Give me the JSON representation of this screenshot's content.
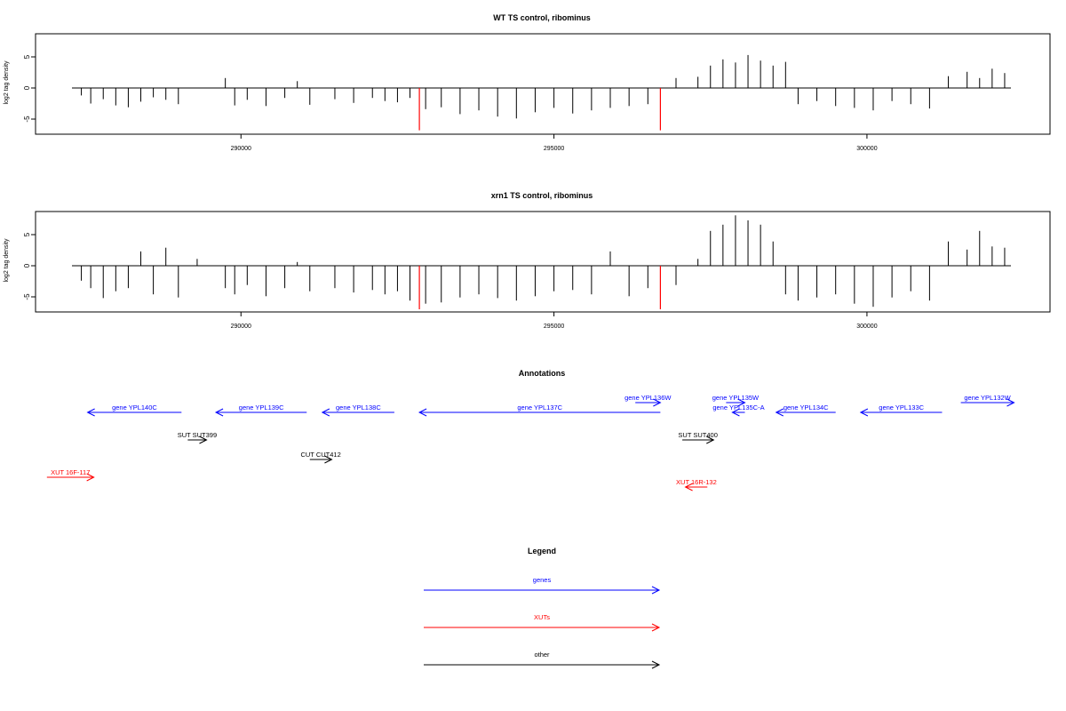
{
  "colors": {
    "gene": "#0000ff",
    "xut": "#ff0000",
    "other": "#000000",
    "bar": "#000000",
    "highlight": "#ff0000"
  },
  "panels": {
    "wt": {
      "title": "WT TS control, ribominus"
    },
    "xrn1": {
      "title": "xrn1 TS control, ribominus"
    },
    "annotations": {
      "title": "Annotations"
    },
    "legend": {
      "title": "Legend"
    }
  },
  "chart_data": [
    {
      "type": "bar",
      "title": "WT TS control, ribominus",
      "ylabel": "log2 tag density",
      "xlim": [
        287200,
        302300
      ],
      "ylim": [
        -7,
        9
      ],
      "xticks": [
        "290000",
        "295000",
        "300000"
      ],
      "yticks": [
        "-5",
        "0",
        "5"
      ],
      "baseline": [
        287300,
        302300
      ],
      "highlight_x": [
        292850,
        296700
      ],
      "highlight_values": [
        -6.8,
        -6.8
      ],
      "x": [
        287450,
        287600,
        287800,
        288000,
        288200,
        288400,
        288600,
        288800,
        289000,
        289750,
        289900,
        290100,
        290400,
        290700,
        290900,
        291100,
        291500,
        291800,
        292100,
        292300,
        292500,
        292700,
        292950,
        293200,
        293500,
        293800,
        294100,
        294400,
        294700,
        295000,
        295300,
        295600,
        295900,
        296200,
        296500,
        296950,
        297300,
        297500,
        297700,
        297900,
        298100,
        298300,
        298500,
        298700,
        298900,
        299200,
        299500,
        299800,
        300100,
        300400,
        300700,
        301000,
        301300,
        301600,
        301800,
        302000,
        302200
      ],
      "values": [
        -1.2,
        -2.5,
        -1.8,
        -2.8,
        -3.1,
        -2.2,
        -1.5,
        -1.9,
        -2.6,
        1.6,
        -2.8,
        -1.9,
        -2.9,
        -1.6,
        1.1,
        -2.7,
        -1.8,
        -2.4,
        -1.6,
        -2.1,
        -2.3,
        -1.6,
        -3.4,
        -3.1,
        -4.2,
        -3.6,
        -4.6,
        -4.9,
        -3.9,
        -3.2,
        -4.1,
        -3.6,
        -3.2,
        -2.9,
        -2.6,
        1.6,
        1.8,
        3.6,
        4.6,
        4.1,
        5.3,
        4.4,
        3.6,
        4.2,
        -2.6,
        -2.1,
        -2.9,
        -3.2,
        -3.6,
        -2.1,
        -2.6,
        -3.3,
        1.9,
        2.6,
        1.6,
        3.1,
        2.4
      ]
    },
    {
      "type": "bar",
      "title": "xrn1 TS control, ribominus",
      "ylabel": "log2 tag density",
      "xlim": [
        287200,
        302300
      ],
      "ylim": [
        -7,
        9
      ],
      "xticks": [
        "290000",
        "295000",
        "300000"
      ],
      "yticks": [
        "-5",
        "0",
        "5"
      ],
      "baseline": [
        287300,
        302300
      ],
      "highlight_x": [
        292850,
        296700
      ],
      "highlight_values": [
        -7.0,
        -7.0
      ],
      "x": [
        287450,
        287600,
        287800,
        288000,
        288200,
        288400,
        288600,
        288800,
        289000,
        289300,
        289750,
        289900,
        290100,
        290400,
        290700,
        290900,
        291100,
        291500,
        291800,
        292100,
        292300,
        292500,
        292700,
        292950,
        293200,
        293500,
        293800,
        294100,
        294400,
        294700,
        295000,
        295300,
        295600,
        295900,
        296200,
        296500,
        296950,
        297300,
        297500,
        297700,
        297900,
        298100,
        298300,
        298500,
        298700,
        298900,
        299200,
        299500,
        299800,
        300100,
        300400,
        300700,
        301000,
        301300,
        301600,
        301800,
        302000,
        302200
      ],
      "values": [
        -2.4,
        -3.6,
        -5.2,
        -4.1,
        -3.6,
        2.3,
        -4.6,
        2.9,
        -5.1,
        1.1,
        -3.6,
        -4.6,
        -3.1,
        -4.9,
        -3.6,
        0.6,
        -4.1,
        -3.6,
        -4.3,
        -3.9,
        -4.6,
        -4.1,
        -5.6,
        -6.1,
        -5.9,
        -5.1,
        -4.6,
        -5.2,
        -5.6,
        -4.9,
        -4.1,
        -3.9,
        -4.6,
        2.3,
        -4.9,
        -3.6,
        -3.1,
        1.1,
        5.6,
        6.6,
        8.1,
        7.3,
        6.6,
        3.9,
        -4.6,
        -5.6,
        -5.1,
        -4.6,
        -6.1,
        -6.6,
        -5.1,
        -4.1,
        -5.6,
        3.9,
        2.6,
        5.6,
        3.1,
        2.9
      ]
    }
  ],
  "annotations": {
    "features": [
      {
        "label": "gene YPL140C",
        "kind": "gene",
        "start": 287550,
        "end": 289050,
        "strand": "-",
        "row": 0
      },
      {
        "label": "gene YPL139C",
        "kind": "gene",
        "start": 289600,
        "end": 291050,
        "strand": "-",
        "row": 0
      },
      {
        "label": "gene YPL138C",
        "kind": "gene",
        "start": 291300,
        "end": 292450,
        "strand": "-",
        "row": 0
      },
      {
        "label": "gene YPL137C",
        "kind": "gene",
        "start": 292850,
        "end": 296700,
        "strand": "-",
        "row": 0
      },
      {
        "label": "gene YPL136W",
        "kind": "gene",
        "start": 296300,
        "end": 296700,
        "strand": "+",
        "row": -1
      },
      {
        "label": "gene YPL135W",
        "kind": "gene",
        "start": 297750,
        "end": 298050,
        "strand": "+",
        "row": -1
      },
      {
        "label": "gene YPL135C-A",
        "kind": "gene",
        "start": 297850,
        "end": 298050,
        "strand": "-",
        "row": 0
      },
      {
        "label": "gene YPL134C",
        "kind": "gene",
        "start": 298550,
        "end": 299500,
        "strand": "-",
        "row": 0
      },
      {
        "label": "gene YPL133C",
        "kind": "gene",
        "start": 299900,
        "end": 301200,
        "strand": "-",
        "row": 0
      },
      {
        "label": "gene YPL132W",
        "kind": "gene",
        "start": 301500,
        "end": 302350,
        "strand": "+",
        "row": -1
      },
      {
        "label": "SUT SUT399",
        "kind": "other",
        "start": 289150,
        "end": 289450,
        "strand": "+",
        "row": 2
      },
      {
        "label": "SUT SUT400",
        "kind": "other",
        "start": 297050,
        "end": 297550,
        "strand": "+",
        "row": 2
      },
      {
        "label": "CUT CUT412",
        "kind": "other",
        "start": 291100,
        "end": 291450,
        "strand": "+",
        "row": 3
      },
      {
        "label": "XUT 16F-117",
        "kind": "xut",
        "start": 286900,
        "end": 287650,
        "strand": "+",
        "row": 4
      },
      {
        "label": "XUT 16R-132",
        "kind": "xut",
        "start": 297100,
        "end": 297450,
        "strand": "-",
        "row": 5
      }
    ]
  },
  "legend": {
    "items": [
      {
        "label": "genes",
        "kind": "gene"
      },
      {
        "label": "XUTs",
        "kind": "xut"
      },
      {
        "label": "other",
        "kind": "other"
      }
    ]
  }
}
